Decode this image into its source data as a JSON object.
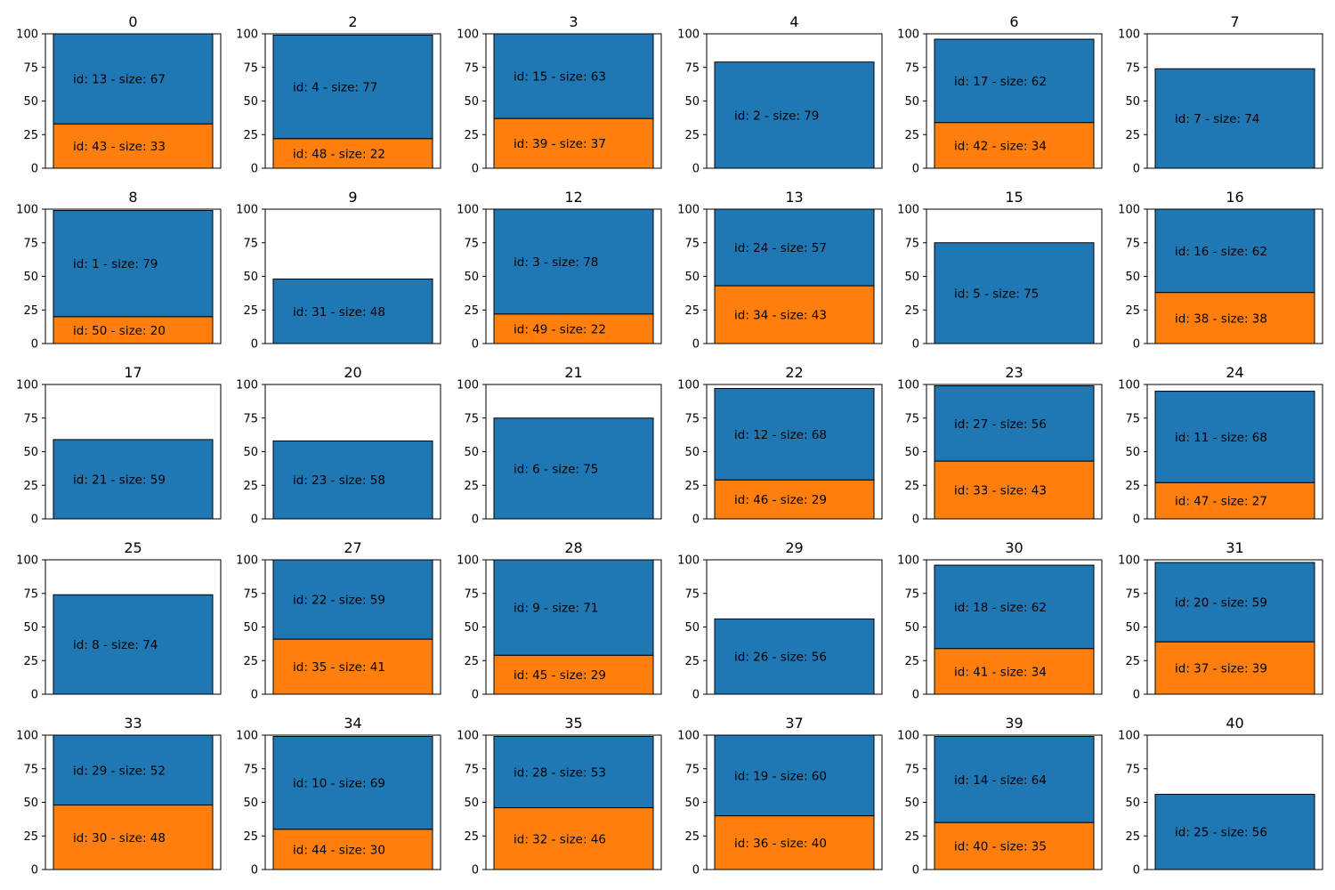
{
  "chart_data": {
    "type": "bar",
    "layout": "grid of 30 small stacked-bar panels, 5 rows x 6 columns",
    "ylim": [
      0,
      100
    ],
    "yticks": [
      0,
      25,
      50,
      75,
      100
    ],
    "grid": false,
    "colors": {
      "bottom": "#ff7f0e",
      "top": "#1f77b4",
      "edge": "#000000"
    },
    "panels": [
      {
        "title": "0",
        "bars": [
          {
            "id": 43,
            "size": 33,
            "label": "id: 43 - size: 33"
          },
          {
            "id": 13,
            "size": 67,
            "label": "id: 13 - size: 67"
          }
        ]
      },
      {
        "title": "2",
        "bars": [
          {
            "id": 48,
            "size": 22,
            "label": "id: 48 - size: 22"
          },
          {
            "id": 4,
            "size": 77,
            "label": "id: 4 - size: 77"
          }
        ]
      },
      {
        "title": "3",
        "bars": [
          {
            "id": 39,
            "size": 37,
            "label": "id: 39 - size: 37"
          },
          {
            "id": 15,
            "size": 63,
            "label": "id: 15 - size: 63"
          }
        ]
      },
      {
        "title": "4",
        "bars": [
          {
            "id": 2,
            "size": 79,
            "label": "id: 2 - size: 79"
          }
        ]
      },
      {
        "title": "6",
        "bars": [
          {
            "id": 42,
            "size": 34,
            "label": "id: 42 - size: 34"
          },
          {
            "id": 17,
            "size": 62,
            "label": "id: 17 - size: 62"
          }
        ]
      },
      {
        "title": "7",
        "bars": [
          {
            "id": 7,
            "size": 74,
            "label": "id: 7 - size: 74"
          }
        ]
      },
      {
        "title": "8",
        "bars": [
          {
            "id": 50,
            "size": 20,
            "label": "id: 50 - size: 20"
          },
          {
            "id": 1,
            "size": 79,
            "label": "id: 1 - size: 79"
          }
        ]
      },
      {
        "title": "9",
        "bars": [
          {
            "id": 31,
            "size": 48,
            "label": "id: 31 - size: 48"
          }
        ]
      },
      {
        "title": "12",
        "bars": [
          {
            "id": 49,
            "size": 22,
            "label": "id: 49 - size: 22"
          },
          {
            "id": 3,
            "size": 78,
            "label": "id: 3 - size: 78"
          }
        ]
      },
      {
        "title": "13",
        "bars": [
          {
            "id": 34,
            "size": 43,
            "label": "id: 34 - size: 43"
          },
          {
            "id": 24,
            "size": 57,
            "label": "id: 24 - size: 57"
          }
        ]
      },
      {
        "title": "15",
        "bars": [
          {
            "id": 5,
            "size": 75,
            "label": "id: 5 - size: 75"
          }
        ]
      },
      {
        "title": "16",
        "bars": [
          {
            "id": 38,
            "size": 38,
            "label": "id: 38 - size: 38"
          },
          {
            "id": 16,
            "size": 62,
            "label": "id: 16 - size: 62"
          }
        ]
      },
      {
        "title": "17",
        "bars": [
          {
            "id": 21,
            "size": 59,
            "label": "id: 21 - size: 59"
          }
        ]
      },
      {
        "title": "20",
        "bars": [
          {
            "id": 23,
            "size": 58,
            "label": "id: 23 - size: 58"
          }
        ]
      },
      {
        "title": "21",
        "bars": [
          {
            "id": 6,
            "size": 75,
            "label": "id: 6 - size: 75"
          }
        ]
      },
      {
        "title": "22",
        "bars": [
          {
            "id": 46,
            "size": 29,
            "label": "id: 46 - size: 29"
          },
          {
            "id": 12,
            "size": 68,
            "label": "id: 12 - size: 68"
          }
        ]
      },
      {
        "title": "23",
        "bars": [
          {
            "id": 33,
            "size": 43,
            "label": "id: 33 - size: 43"
          },
          {
            "id": 27,
            "size": 56,
            "label": "id: 27 - size: 56"
          }
        ]
      },
      {
        "title": "24",
        "bars": [
          {
            "id": 47,
            "size": 27,
            "label": "id: 47 - size: 27"
          },
          {
            "id": 11,
            "size": 68,
            "label": "id: 11 - size: 68"
          }
        ]
      },
      {
        "title": "25",
        "bars": [
          {
            "id": 8,
            "size": 74,
            "label": "id: 8 - size: 74"
          }
        ]
      },
      {
        "title": "27",
        "bars": [
          {
            "id": 35,
            "size": 41,
            "label": "id: 35 - size: 41"
          },
          {
            "id": 22,
            "size": 59,
            "label": "id: 22 - size: 59"
          }
        ]
      },
      {
        "title": "28",
        "bars": [
          {
            "id": 45,
            "size": 29,
            "label": "id: 45 - size: 29"
          },
          {
            "id": 9,
            "size": 71,
            "label": "id: 9 - size: 71"
          }
        ]
      },
      {
        "title": "29",
        "bars": [
          {
            "id": 26,
            "size": 56,
            "label": "id: 26 - size: 56"
          }
        ]
      },
      {
        "title": "30",
        "bars": [
          {
            "id": 41,
            "size": 34,
            "label": "id: 41 - size: 34"
          },
          {
            "id": 18,
            "size": 62,
            "label": "id: 18 - size: 62"
          }
        ]
      },
      {
        "title": "31",
        "bars": [
          {
            "id": 37,
            "size": 39,
            "label": "id: 37 - size: 39"
          },
          {
            "id": 20,
            "size": 59,
            "label": "id: 20 - size: 59"
          }
        ]
      },
      {
        "title": "33",
        "bars": [
          {
            "id": 30,
            "size": 48,
            "label": "id: 30 - size: 48"
          },
          {
            "id": 29,
            "size": 52,
            "label": "id: 29 - size: 52"
          }
        ]
      },
      {
        "title": "34",
        "bars": [
          {
            "id": 44,
            "size": 30,
            "label": "id: 44 - size: 30"
          },
          {
            "id": 10,
            "size": 69,
            "label": "id: 10 - size: 69"
          }
        ]
      },
      {
        "title": "35",
        "bars": [
          {
            "id": 32,
            "size": 46,
            "label": "id: 32 - size: 46"
          },
          {
            "id": 28,
            "size": 53,
            "label": "id: 28 - size: 53"
          }
        ]
      },
      {
        "title": "37",
        "bars": [
          {
            "id": 36,
            "size": 40,
            "label": "id: 36 - size: 40"
          },
          {
            "id": 19,
            "size": 60,
            "label": "id: 19 - size: 60"
          }
        ]
      },
      {
        "title": "39",
        "bars": [
          {
            "id": 40,
            "size": 35,
            "label": "id: 40 - size: 35"
          },
          {
            "id": 14,
            "size": 64,
            "label": "id: 14 - size: 64"
          }
        ]
      },
      {
        "title": "40",
        "bars": [
          {
            "id": 25,
            "size": 56,
            "label": "id: 25 - size: 56"
          }
        ]
      }
    ]
  }
}
